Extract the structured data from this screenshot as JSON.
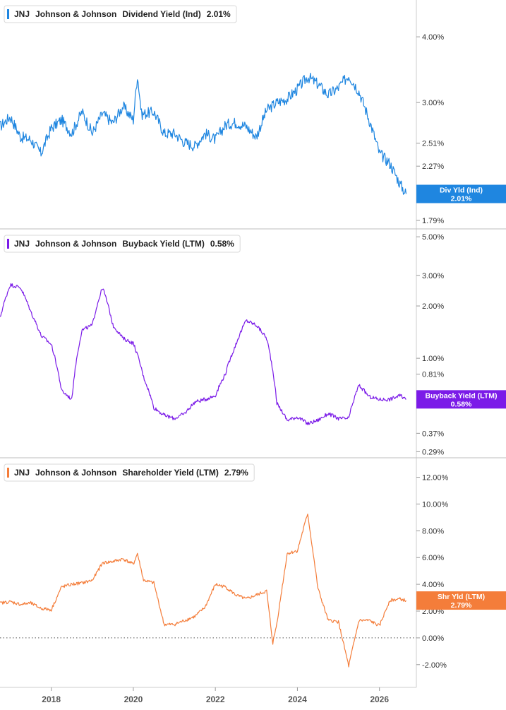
{
  "chart_data": [
    {
      "type": "line",
      "title": "",
      "legend": {
        "ticker": "JNJ",
        "company": "Johnson & Johnson",
        "metric": "Dividend Yield (Ind)",
        "value": "2.01%"
      },
      "color": "#1f86e0",
      "scale": "log",
      "ylim": [
        1.73,
        4.7
      ],
      "yticks": [
        {
          "v": 4.0,
          "label": "4.00%"
        },
        {
          "v": 3.0,
          "label": "3.00%"
        },
        {
          "v": 2.51,
          "label": "2.51%"
        },
        {
          "v": 2.27,
          "label": "2.27%"
        },
        {
          "v": 1.79,
          "label": "1.79%"
        }
      ],
      "tag": {
        "label": "Div Yld (Ind)",
        "value": "2.01%"
      },
      "x": [
        2016.75,
        2017.0,
        2017.25,
        2017.5,
        2017.75,
        2018.0,
        2018.25,
        2018.5,
        2018.75,
        2019.0,
        2019.25,
        2019.5,
        2019.75,
        2020.0,
        2020.1,
        2020.2,
        2020.5,
        2020.75,
        2021.0,
        2021.25,
        2021.5,
        2021.75,
        2022.0,
        2022.25,
        2022.5,
        2022.75,
        2023.0,
        2023.25,
        2023.5,
        2023.75,
        2024.0,
        2024.25,
        2024.5,
        2024.75,
        2025.0,
        2025.25,
        2025.5,
        2025.75,
        2026.0,
        2026.25,
        2026.5,
        2026.65
      ],
      "values": [
        2.7,
        2.82,
        2.58,
        2.55,
        2.4,
        2.68,
        2.78,
        2.62,
        2.88,
        2.62,
        2.86,
        2.74,
        2.95,
        2.78,
        3.38,
        2.85,
        2.88,
        2.62,
        2.62,
        2.52,
        2.48,
        2.62,
        2.55,
        2.72,
        2.75,
        2.7,
        2.58,
        2.9,
        3.0,
        3.05,
        3.18,
        3.36,
        3.25,
        3.1,
        3.2,
        3.38,
        3.15,
        2.78,
        2.4,
        2.3,
        2.1,
        2.01
      ]
    },
    {
      "type": "line",
      "title": "",
      "legend": {
        "ticker": "JNJ",
        "company": "Johnson & Johnson",
        "metric": "Buyback Yield (LTM)",
        "value": "0.58%"
      },
      "color": "#7b1be8",
      "scale": "log",
      "ylim": [
        0.27,
        5.5
      ],
      "yticks": [
        {
          "v": 5.0,
          "label": "5.00%"
        },
        {
          "v": 3.0,
          "label": "3.00%"
        },
        {
          "v": 2.0,
          "label": "2.00%"
        },
        {
          "v": 1.0,
          "label": "1.00%"
        },
        {
          "v": 0.81,
          "label": "0.81%"
        },
        {
          "v": 0.37,
          "label": "0.37%"
        },
        {
          "v": 0.29,
          "label": "0.29%"
        }
      ],
      "tag": {
        "label": "Buyback Yield (LTM)",
        "value": "0.58%"
      },
      "x": [
        2016.75,
        2017.0,
        2017.25,
        2017.5,
        2017.75,
        2018.0,
        2018.25,
        2018.5,
        2018.75,
        2019.0,
        2019.25,
        2019.5,
        2019.75,
        2020.0,
        2020.25,
        2020.5,
        2020.75,
        2021.0,
        2021.25,
        2021.5,
        2021.75,
        2022.0,
        2022.25,
        2022.5,
        2022.75,
        2023.0,
        2023.25,
        2023.5,
        2023.75,
        2024.0,
        2024.25,
        2024.5,
        2024.75,
        2025.0,
        2025.25,
        2025.5,
        2025.75,
        2026.0,
        2026.25,
        2026.5,
        2026.65
      ],
      "values": [
        1.7,
        2.65,
        2.55,
        1.85,
        1.35,
        1.2,
        0.65,
        0.58,
        1.45,
        1.55,
        2.55,
        1.55,
        1.3,
        1.22,
        0.78,
        0.52,
        0.47,
        0.45,
        0.48,
        0.56,
        0.58,
        0.61,
        0.82,
        1.2,
        1.65,
        1.55,
        1.3,
        0.55,
        0.44,
        0.46,
        0.42,
        0.44,
        0.48,
        0.45,
        0.45,
        0.7,
        0.6,
        0.58,
        0.58,
        0.61,
        0.58
      ]
    },
    {
      "type": "line",
      "title": "",
      "legend": {
        "ticker": "JNJ",
        "company": "Johnson & Johnson",
        "metric": "Shareholder Yield (LTM)",
        "value": "2.79%"
      },
      "color": "#f47d3a",
      "scale": "linear",
      "ylim": [
        -3.7,
        13.4
      ],
      "yticks": [
        {
          "v": 12,
          "label": "12.00%"
        },
        {
          "v": 10,
          "label": "10.00%"
        },
        {
          "v": 8,
          "label": "8.00%"
        },
        {
          "v": 6,
          "label": "6.00%"
        },
        {
          "v": 4,
          "label": "4.00%"
        },
        {
          "v": 2,
          "label": "2.00%"
        },
        {
          "v": 0,
          "label": "0.00%"
        },
        {
          "v": -2,
          "label": "-2.00%"
        }
      ],
      "tag": {
        "label": "Shr Yld (LTM)",
        "value": "2.79%"
      },
      "x": [
        2016.75,
        2017.0,
        2017.25,
        2017.5,
        2017.75,
        2018.0,
        2018.25,
        2018.5,
        2018.75,
        2019.0,
        2019.25,
        2019.5,
        2019.75,
        2020.0,
        2020.1,
        2020.25,
        2020.5,
        2020.75,
        2021.0,
        2021.25,
        2021.5,
        2021.75,
        2022.0,
        2022.25,
        2022.5,
        2022.75,
        2023.0,
        2023.25,
        2023.4,
        2023.5,
        2023.75,
        2024.0,
        2024.25,
        2024.5,
        2024.75,
        2025.0,
        2025.25,
        2025.5,
        2025.75,
        2026.0,
        2026.25,
        2026.5,
        2026.65
      ],
      "values": [
        2.6,
        2.7,
        2.5,
        2.6,
        2.2,
        2.1,
        3.8,
        4.0,
        4.1,
        4.3,
        5.6,
        5.7,
        5.9,
        5.5,
        6.3,
        4.3,
        4.1,
        1.0,
        1.0,
        1.3,
        1.6,
        2.3,
        4.0,
        3.8,
        3.2,
        2.9,
        3.2,
        3.5,
        -0.4,
        1.1,
        6.3,
        6.5,
        9.3,
        3.7,
        1.3,
        1.2,
        -2.1,
        1.3,
        1.3,
        0.9,
        2.8,
        2.9,
        2.79
      ]
    }
  ],
  "x_axis": {
    "range": [
      2016.75,
      2026.9
    ],
    "ticks": [
      {
        "v": 2018,
        "label": "2018"
      },
      {
        "v": 2020,
        "label": "2020"
      },
      {
        "v": 2022,
        "label": "2022"
      },
      {
        "v": 2024,
        "label": "2024"
      },
      {
        "v": 2026,
        "label": "2026"
      }
    ]
  }
}
